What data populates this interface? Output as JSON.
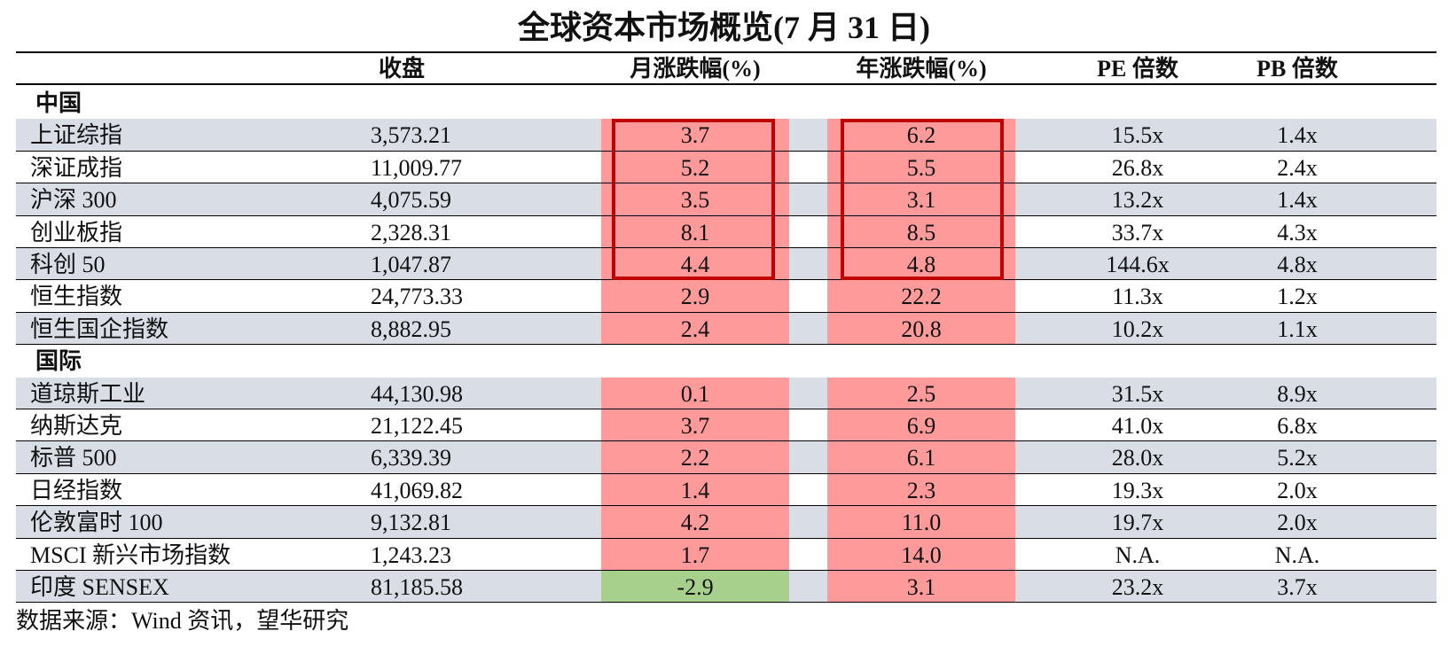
{
  "chart_data": {
    "type": "table",
    "title": "全球资本市场概览(7 月 31 日)",
    "columns": [
      "",
      "收盘",
      "月涨跌幅(%)",
      "年涨跌幅(%)",
      "PE 倍数",
      "PB 倍数"
    ],
    "groups": [
      {
        "label": "中国",
        "rows": [
          {
            "name": "上证综指",
            "close": "3,573.21",
            "mo": "3.7",
            "yr": "6.2",
            "pe": "15.5x",
            "pb": "1.4x"
          },
          {
            "name": "深证成指",
            "close": "11,009.77",
            "mo": "5.2",
            "yr": "5.5",
            "pe": "26.8x",
            "pb": "2.4x"
          },
          {
            "name": "沪深 300",
            "close": "4,075.59",
            "mo": "3.5",
            "yr": "3.1",
            "pe": "13.2x",
            "pb": "1.4x"
          },
          {
            "name": "创业板指",
            "close": "2,328.31",
            "mo": "8.1",
            "yr": "8.5",
            "pe": "33.7x",
            "pb": "4.3x"
          },
          {
            "name": "科创 50",
            "close": "1,047.87",
            "mo": "4.4",
            "yr": "4.8",
            "pe": "144.6x",
            "pb": "4.8x"
          },
          {
            "name": "恒生指数",
            "close": "24,773.33",
            "mo": "2.9",
            "yr": "22.2",
            "pe": "11.3x",
            "pb": "1.2x"
          },
          {
            "name": "恒生国企指数",
            "close": "8,882.95",
            "mo": "2.4",
            "yr": "20.8",
            "pe": "10.2x",
            "pb": "1.1x"
          }
        ]
      },
      {
        "label": "国际",
        "rows": [
          {
            "name": "道琼斯工业",
            "close": "44,130.98",
            "mo": "0.1",
            "yr": "2.5",
            "pe": "31.5x",
            "pb": "8.9x"
          },
          {
            "name": "纳斯达克",
            "close": "21,122.45",
            "mo": "3.7",
            "yr": "6.9",
            "pe": "41.0x",
            "pb": "6.8x"
          },
          {
            "name": "标普 500",
            "close": "6,339.39",
            "mo": "2.2",
            "yr": "6.1",
            "pe": "28.0x",
            "pb": "5.2x"
          },
          {
            "name": "日经指数",
            "close": "41,069.82",
            "mo": "1.4",
            "yr": "2.3",
            "pe": "19.3x",
            "pb": "2.0x"
          },
          {
            "name": "伦敦富时 100",
            "close": "9,132.81",
            "mo": "4.2",
            "yr": "11.0",
            "pe": "19.7x",
            "pb": "2.0x"
          },
          {
            "name": "MSCI 新兴市场指数",
            "close": "1,243.23",
            "mo": "1.7",
            "yr": "14.0",
            "pe": "N.A.",
            "pb": "N.A."
          },
          {
            "name": "印度 SENSEX",
            "close": "81,185.58",
            "mo": "-2.9",
            "yr": "3.1",
            "pe": "23.2x",
            "pb": "3.7x"
          }
        ]
      }
    ],
    "colors": {
      "positive": "#ff9a9a",
      "negative": "#a8d08d",
      "row_shade": "#d9dee6",
      "highlight_box": "#c00000"
    }
  },
  "source": "数据来源：Wind 资讯，望华研究"
}
